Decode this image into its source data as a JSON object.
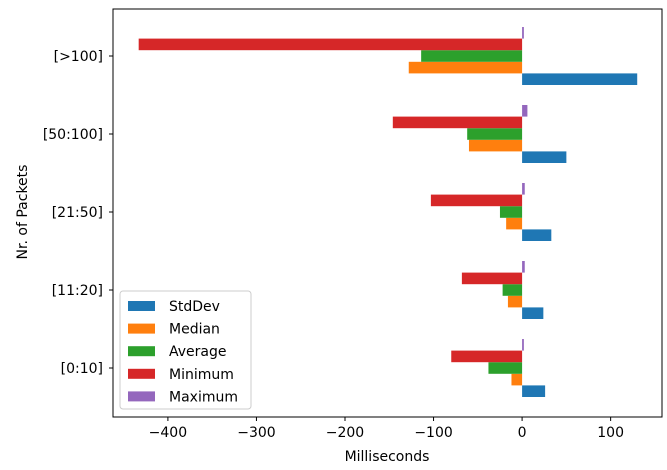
{
  "chart_data": {
    "type": "bar",
    "orientation": "horizontal",
    "categories": [
      "[0:10]",
      "[11:20]",
      "[21:50]",
      "[50:100]",
      "[>100]"
    ],
    "series": [
      {
        "name": "StdDev",
        "color": "#1f77b4",
        "values": [
          26,
          24,
          33,
          50,
          130
        ]
      },
      {
        "name": "Median",
        "color": "#ff7f0e",
        "values": [
          -12,
          -16,
          -18,
          -60,
          -128
        ]
      },
      {
        "name": "Average",
        "color": "#2ca02c",
        "values": [
          -38,
          -22,
          -25,
          -62,
          -114
        ]
      },
      {
        "name": "Minimum",
        "color": "#d62728",
        "values": [
          -80,
          -68,
          -103,
          -146,
          -433
        ]
      },
      {
        "name": "Maximum",
        "color": "#9467bd",
        "values": [
          2,
          3,
          3,
          6,
          2
        ]
      }
    ],
    "xlabel": "Milliseconds",
    "ylabel": "Nr. of Packets",
    "xlim": [
      -462,
      158
    ],
    "xticks": [
      -400,
      -300,
      -200,
      -100,
      0,
      100
    ],
    "xtick_labels": [
      "−400",
      "−300",
      "−200",
      "−100",
      "0",
      "100"
    ],
    "legend_position": "lower-left",
    "grid": false
  }
}
